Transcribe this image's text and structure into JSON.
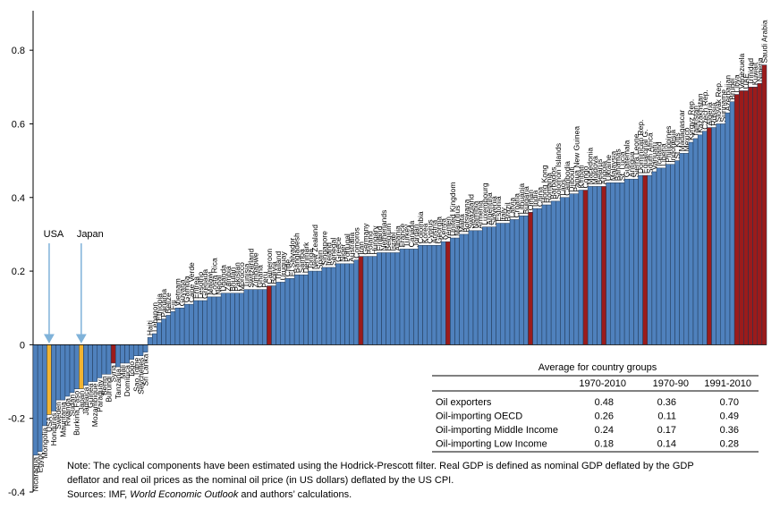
{
  "chart_data": {
    "type": "bar",
    "categories": [
      "Nicaragua",
      "Egypt",
      "Mongolia",
      "USA",
      "Honduras",
      "Sweden",
      "Mauritania",
      "Rwanda",
      "Sudan",
      "Burkina Faso",
      "Japan",
      "Jamaica",
      "Guinea",
      "Mozambique",
      "Paraguay",
      "Benin",
      "Burundi",
      "Syria",
      "Tanzania",
      "Mali",
      "Dominica",
      "Togo",
      "Sao Tome",
      "Seychelles",
      "Sri Lanka",
      "Haiti",
      "Lebanon",
      "Ethiopia",
      "Panama",
      "Belize",
      "Fiji",
      "Vietnam",
      "Guyana",
      "Gambia",
      "Cape Verde",
      "Eritrea",
      "Lesotho",
      "Grenada",
      "Malawi",
      "Costa Rica",
      "Nepal",
      "Uganda",
      "Zambia",
      "Bhutan",
      "Pakistan",
      "Morocco",
      "Tunisia",
      "Switzerland",
      "Zimbabwe",
      "Ghana",
      "Peru",
      "Cameroon",
      "Bolivia",
      "Thailand",
      "Uruguay",
      "Chile",
      "El Salvador",
      "Bangladesh",
      "Samoa",
      "Denmark",
      "Tonga",
      "New Zealand",
      "Spain",
      "Singapore",
      "Ireland",
      "Senegal",
      "Greece",
      "Niger",
      "Portugal",
      "Australia",
      "Comoros",
      "Iran",
      "Germany",
      "Poland",
      "Hungary",
      "Finland",
      "Netherlands",
      "Belgium",
      "Israel",
      "Albania",
      "France",
      "Turkey",
      "Canada",
      "Jordan",
      "Colombia",
      "Korea",
      "Cyprus",
      "Austria",
      "Georgia",
      "Kenya",
      "Yemen",
      "United Kingdom",
      "Mauritius",
      "Malta",
      "Botswana",
      "Swaziland",
      "Namibia",
      "Armenia",
      "Luxembourg",
      "Argentina",
      "Slovenia",
      "Estonia",
      "Italy",
      "Brazil",
      "Latvia",
      "Croatia",
      "Lithuania",
      "Bulgaria",
      "Oman",
      "India",
      "China",
      "Hong Kong",
      "Romania",
      "Barbados",
      "Solomon Islands",
      "Laos",
      "Cambodia",
      "Djibouti",
      "Papua New Guinea",
      "Kiribati",
      "Congo",
      "Macedonia",
      "Moldova",
      "Belarus",
      "Angola",
      "Ukraine",
      "Malaysia",
      "Bahamas",
      "St. Lucia",
      "Guatemala",
      "Antigua",
      "Sierra Leone",
      "Dominican Rep.",
      "Equatorial G.",
      "South Africa",
      "Vanuatu",
      "Iceland",
      "Liberia",
      "Philippines",
      "Indonesia",
      "St. Kitts",
      "Madagascar",
      "Mexico",
      "Kyrgyz Rep.",
      "Tajikistan",
      "Kazakhstan",
      "Czech Rep.",
      "Algeria",
      "Russia",
      "Slovak Rep.",
      "Suriname",
      "Azerbaijan",
      "Brunei",
      "Libya",
      "Venezuela",
      "UAE",
      "Trinidad",
      "Kuwait",
      "Nigeria",
      "Saudi Arabia"
    ],
    "values": [
      -0.3,
      -0.29,
      -0.22,
      -0.19,
      -0.18,
      -0.15,
      -0.15,
      -0.14,
      -0.13,
      -0.12,
      -0.12,
      -0.11,
      -0.1,
      -0.1,
      -0.09,
      -0.08,
      -0.08,
      -0.05,
      -0.06,
      -0.05,
      -0.05,
      -0.04,
      -0.03,
      -0.03,
      -0.02,
      0.02,
      0.03,
      0.06,
      0.07,
      0.08,
      0.09,
      0.1,
      0.1,
      0.11,
      0.11,
      0.12,
      0.12,
      0.12,
      0.13,
      0.13,
      0.13,
      0.14,
      0.14,
      0.14,
      0.14,
      0.14,
      0.15,
      0.15,
      0.15,
      0.15,
      0.15,
      0.16,
      0.16,
      0.17,
      0.17,
      0.18,
      0.18,
      0.19,
      0.19,
      0.19,
      0.2,
      0.2,
      0.2,
      0.21,
      0.21,
      0.21,
      0.22,
      0.22,
      0.22,
      0.22,
      0.23,
      0.24,
      0.24,
      0.24,
      0.24,
      0.25,
      0.25,
      0.25,
      0.25,
      0.25,
      0.26,
      0.26,
      0.26,
      0.26,
      0.27,
      0.27,
      0.27,
      0.27,
      0.27,
      0.28,
      0.28,
      0.29,
      0.29,
      0.3,
      0.3,
      0.31,
      0.31,
      0.31,
      0.32,
      0.32,
      0.32,
      0.33,
      0.33,
      0.33,
      0.34,
      0.34,
      0.35,
      0.35,
      0.36,
      0.37,
      0.37,
      0.38,
      0.38,
      0.39,
      0.39,
      0.4,
      0.4,
      0.41,
      0.41,
      0.42,
      0.42,
      0.43,
      0.43,
      0.43,
      0.43,
      0.44,
      0.44,
      0.44,
      0.44,
      0.45,
      0.45,
      0.45,
      0.46,
      0.46,
      0.46,
      0.47,
      0.48,
      0.48,
      0.49,
      0.49,
      0.5,
      0.52,
      0.52,
      0.55,
      0.56,
      0.57,
      0.58,
      0.59,
      0.59,
      0.6,
      0.6,
      0.63,
      0.66,
      0.68,
      0.69,
      0.69,
      0.7,
      0.7,
      0.71,
      0.76
    ],
    "colors": [
      "#4f81bd",
      "#4f81bd",
      "#4f81bd",
      "#f2b430",
      "#4f81bd",
      "#4f81bd",
      "#4f81bd",
      "#4f81bd",
      "#4f81bd",
      "#4f81bd",
      "#f2b430",
      "#4f81bd",
      "#4f81bd",
      "#4f81bd",
      "#4f81bd",
      "#4f81bd",
      "#4f81bd",
      "#9b1b1b",
      "#4f81bd",
      "#4f81bd",
      "#4f81bd",
      "#4f81bd",
      "#4f81bd",
      "#4f81bd",
      "#4f81bd",
      "#4f81bd",
      "#4f81bd",
      "#4f81bd",
      "#4f81bd",
      "#4f81bd",
      "#4f81bd",
      "#4f81bd",
      "#4f81bd",
      "#4f81bd",
      "#4f81bd",
      "#4f81bd",
      "#4f81bd",
      "#4f81bd",
      "#4f81bd",
      "#4f81bd",
      "#4f81bd",
      "#4f81bd",
      "#4f81bd",
      "#4f81bd",
      "#4f81bd",
      "#4f81bd",
      "#4f81bd",
      "#4f81bd",
      "#4f81bd",
      "#4f81bd",
      "#4f81bd",
      "#9b1b1b",
      "#4f81bd",
      "#4f81bd",
      "#4f81bd",
      "#4f81bd",
      "#4f81bd",
      "#4f81bd",
      "#4f81bd",
      "#4f81bd",
      "#4f81bd",
      "#4f81bd",
      "#4f81bd",
      "#4f81bd",
      "#4f81bd",
      "#4f81bd",
      "#4f81bd",
      "#4f81bd",
      "#4f81bd",
      "#4f81bd",
      "#4f81bd",
      "#9b1b1b",
      "#4f81bd",
      "#4f81bd",
      "#4f81bd",
      "#4f81bd",
      "#4f81bd",
      "#4f81bd",
      "#4f81bd",
      "#4f81bd",
      "#4f81bd",
      "#4f81bd",
      "#4f81bd",
      "#4f81bd",
      "#4f81bd",
      "#4f81bd",
      "#4f81bd",
      "#4f81bd",
      "#4f81bd",
      "#4f81bd",
      "#9b1b1b",
      "#4f81bd",
      "#4f81bd",
      "#4f81bd",
      "#4f81bd",
      "#4f81bd",
      "#4f81bd",
      "#4f81bd",
      "#4f81bd",
      "#4f81bd",
      "#4f81bd",
      "#4f81bd",
      "#4f81bd",
      "#4f81bd",
      "#4f81bd",
      "#4f81bd",
      "#4f81bd",
      "#4f81bd",
      "#9b1b1b",
      "#4f81bd",
      "#4f81bd",
      "#4f81bd",
      "#4f81bd",
      "#4f81bd",
      "#4f81bd",
      "#4f81bd",
      "#4f81bd",
      "#4f81bd",
      "#4f81bd",
      "#4f81bd",
      "#9b1b1b",
      "#4f81bd",
      "#4f81bd",
      "#4f81bd",
      "#9b1b1b",
      "#4f81bd",
      "#4f81bd",
      "#4f81bd",
      "#4f81bd",
      "#4f81bd",
      "#4f81bd",
      "#4f81bd",
      "#4f81bd",
      "#9b1b1b",
      "#4f81bd",
      "#4f81bd",
      "#4f81bd",
      "#4f81bd",
      "#4f81bd",
      "#4f81bd",
      "#4f81bd",
      "#4f81bd",
      "#4f81bd",
      "#4f81bd",
      "#4f81bd",
      "#4f81bd",
      "#4f81bd",
      "#9b1b1b",
      "#4f81bd",
      "#4f81bd",
      "#4f81bd",
      "#4f81bd",
      "#4f81bd",
      "#9b1b1b",
      "#9b1b1b",
      "#9b1b1b",
      "#9b1b1b",
      "#9b1b1b",
      "#9b1b1b",
      "#9b1b1b"
    ],
    "ylim": [
      -0.4,
      0.9
    ],
    "yticks": [
      -0.4,
      -0.2,
      0,
      0.2,
      0.4,
      0.6,
      0.8
    ],
    "annotations": [
      "USA",
      "Japan"
    ],
    "table": {
      "title": "Average for country groups",
      "columns": [
        "1970-2010",
        "1970-90",
        "1991-2010"
      ],
      "rows": [
        {
          "label": "Oil exporters",
          "cells": [
            "0.48",
            "0.36",
            "0.70"
          ]
        },
        {
          "label": "Oil-importing OECD",
          "cells": [
            "0.26",
            "0.11",
            "0.49"
          ]
        },
        {
          "label": "Oil-importing Middle Income",
          "cells": [
            "0.24",
            "0.17",
            "0.36"
          ]
        },
        {
          "label": "Oil-importing Low Income",
          "cells": [
            "0.18",
            "0.14",
            "0.28"
          ]
        }
      ]
    },
    "note": [
      "Note: The cyclical components have been estimated using the Hodrick-Prescott filter. Real GDP is defined as nominal GDP deflated by the GDP",
      "deflator and real oil prices as the nominal oil price (in US dollars) deflated by the US CPI."
    ],
    "sources": [
      "Sources: IMF, ",
      "World Economic Outlook",
      " and authors’ calculations."
    ]
  }
}
